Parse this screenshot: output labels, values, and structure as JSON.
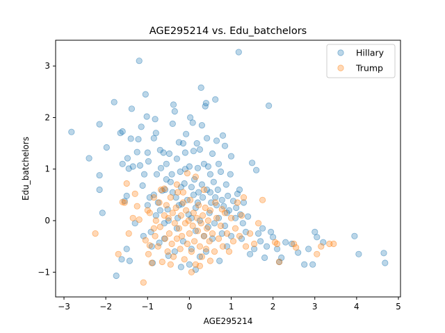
{
  "chart_data": {
    "type": "scatter",
    "title": "AGE295214 vs. Edu_batchelors",
    "xlabel": "AGE295214",
    "ylabel": "Edu_batchelors",
    "xlim": [
      -3.2,
      5.05
    ],
    "ylim": [
      -1.48,
      3.5
    ],
    "xticks": [
      -3,
      -2,
      -1,
      0,
      1,
      2,
      3,
      4,
      5
    ],
    "yticks": [
      -1,
      0,
      1,
      2,
      3
    ],
    "grid": false,
    "legend_position": "top-right",
    "point_alpha": 0.3,
    "series": [
      {
        "name": "Hillary",
        "color": "#1f77b4",
        "points": [
          [
            -2.82,
            1.72
          ],
          [
            -2.4,
            1.21
          ],
          [
            -2.15,
            1.87
          ],
          [
            -2.15,
            0.88
          ],
          [
            -2.15,
            0.6
          ],
          [
            -2.08,
            0.15
          ],
          [
            -1.98,
            1.42
          ],
          [
            -1.8,
            2.3
          ],
          [
            -1.75,
            -1.07
          ],
          [
            -1.65,
            1.7
          ],
          [
            -1.6,
            1.73
          ],
          [
            -1.55,
            0.38
          ],
          [
            -1.62,
            -0.75
          ],
          [
            -1.6,
            1.1
          ],
          [
            -1.5,
            0.48
          ],
          [
            -1.5,
            -0.55
          ],
          [
            -1.48,
            1.21
          ],
          [
            -1.45,
            1.01
          ],
          [
            -1.43,
            -0.78
          ],
          [
            -1.4,
            1.59
          ],
          [
            -1.38,
            2.17
          ],
          [
            -1.35,
            1.05
          ],
          [
            -1.3,
            -0.05
          ],
          [
            -1.25,
            1.33
          ],
          [
            -1.22,
            1.58
          ],
          [
            -1.2,
            3.1
          ],
          [
            -1.18,
            1.07
          ],
          [
            -1.15,
            1.82
          ],
          [
            -1.12,
            0.68
          ],
          [
            -1.1,
            -0.3
          ],
          [
            -1.08,
            0.9
          ],
          [
            -1.05,
            2.45
          ],
          [
            -1.02,
            2.02
          ],
          [
            -1.0,
            1.32
          ],
          [
            -0.98,
            1.15
          ],
          [
            -0.95,
            0.45
          ],
          [
            -0.92,
            -0.22
          ],
          [
            -0.9,
            -0.5
          ],
          [
            -0.88,
            -0.82
          ],
          [
            -0.85,
            1.6
          ],
          [
            -0.82,
            1.97
          ],
          [
            -0.8,
            1.7
          ],
          [
            -0.78,
            0.9
          ],
          [
            -0.75,
            0.35
          ],
          [
            -0.72,
            -0.43
          ],
          [
            -0.7,
            1.37
          ],
          [
            -0.68,
            1.02
          ],
          [
            -0.65,
            0.58
          ],
          [
            -0.62,
            1.32
          ],
          [
            -0.6,
            -0.05
          ],
          [
            -0.58,
            0.6
          ],
          [
            -0.55,
            1.1
          ],
          [
            -0.52,
            0.22
          ],
          [
            -0.5,
            -0.68
          ],
          [
            -0.48,
            1.3
          ],
          [
            -0.45,
            0.75
          ],
          [
            -0.42,
            0.9
          ],
          [
            -0.4,
            1.88
          ],
          [
            -0.38,
            2.25
          ],
          [
            -0.35,
            2.12
          ],
          [
            -0.32,
            0.45
          ],
          [
            -0.3,
            1.2
          ],
          [
            -0.28,
            0.05
          ],
          [
            -0.25,
            1.52
          ],
          [
            -0.22,
            0.95
          ],
          [
            -0.2,
            -0.9
          ],
          [
            -0.18,
            0.32
          ],
          [
            -0.15,
            1.5
          ],
          [
            -0.12,
            0.72
          ],
          [
            -0.1,
            1.32
          ],
          [
            -0.08,
            1.68
          ],
          [
            -0.05,
            0.4
          ],
          [
            -0.02,
            0.12
          ],
          [
            0.0,
            1.05
          ],
          [
            0.02,
            2.0
          ],
          [
            0.05,
            0.65
          ],
          [
            0.08,
            1.9
          ],
          [
            0.1,
            1.35
          ],
          [
            0.12,
            0.8
          ],
          [
            0.15,
            0.25
          ],
          [
            0.18,
            1.5
          ],
          [
            0.2,
            1.02
          ],
          [
            0.22,
            0.55
          ],
          [
            0.25,
            1.38
          ],
          [
            0.28,
            2.58
          ],
          [
            0.3,
            1.85
          ],
          [
            0.32,
            0.45
          ],
          [
            0.35,
            1.1
          ],
          [
            0.38,
            2.22
          ],
          [
            0.4,
            2.28
          ],
          [
            0.42,
            0.6
          ],
          [
            0.45,
            1.05
          ],
          [
            0.48,
            0.15
          ],
          [
            0.5,
            0.9
          ],
          [
            0.52,
            0.35
          ],
          [
            0.55,
            1.3
          ],
          [
            0.58,
            0.75
          ],
          [
            0.6,
            -0.05
          ],
          [
            0.62,
            2.35
          ],
          [
            0.65,
            1.55
          ],
          [
            0.68,
            0.6
          ],
          [
            0.7,
            1.1
          ],
          [
            0.72,
            -0.78
          ],
          [
            0.75,
            0.95
          ],
          [
            0.78,
            0.4
          ],
          [
            0.8,
            1.65
          ],
          [
            0.82,
            0.28
          ],
          [
            0.85,
            1.45
          ],
          [
            0.88,
            0.7
          ],
          [
            0.9,
            -0.5
          ],
          [
            0.92,
            0.48
          ],
          [
            0.95,
            0.2
          ],
          [
            0.98,
            0.9
          ],
          [
            1.0,
            1.25
          ],
          [
            1.05,
            0.38
          ],
          [
            1.1,
            0.05
          ],
          [
            1.15,
            0.52
          ],
          [
            1.18,
            3.27
          ],
          [
            1.2,
            0.6
          ],
          [
            1.25,
            -0.35
          ],
          [
            1.3,
            0.35
          ],
          [
            1.35,
            -0.22
          ],
          [
            1.4,
            0.08
          ],
          [
            1.45,
            -0.65
          ],
          [
            1.5,
            1.12
          ],
          [
            1.55,
            -0.55
          ],
          [
            1.6,
            0.98
          ],
          [
            1.65,
            -0.25
          ],
          [
            1.7,
            -0.4
          ],
          [
            1.75,
            -0.15
          ],
          [
            1.8,
            -0.72
          ],
          [
            1.85,
            -0.5
          ],
          [
            1.9,
            2.23
          ],
          [
            1.95,
            -0.22
          ],
          [
            2.0,
            -0.32
          ],
          [
            2.1,
            -0.55
          ],
          [
            2.15,
            -0.8
          ],
          [
            2.2,
            -0.72
          ],
          [
            2.3,
            -0.42
          ],
          [
            2.45,
            -0.45
          ],
          [
            2.6,
            -0.62
          ],
          [
            2.75,
            -0.85
          ],
          [
            2.85,
            -0.55
          ],
          [
            2.95,
            -0.85
          ],
          [
            3.0,
            -0.22
          ],
          [
            3.05,
            -0.32
          ],
          [
            3.2,
            -0.42
          ],
          [
            3.95,
            -0.3
          ],
          [
            4.05,
            -0.65
          ],
          [
            4.65,
            -0.63
          ],
          [
            4.68,
            -0.82
          ],
          [
            -0.5,
            0.0
          ],
          [
            -0.3,
            -0.15
          ],
          [
            0.05,
            0.05
          ],
          [
            0.15,
            -0.2
          ],
          [
            0.25,
            0.0
          ],
          [
            0.35,
            -0.3
          ],
          [
            0.45,
            -0.12
          ],
          [
            0.55,
            -0.35
          ],
          [
            0.7,
            0.05
          ],
          [
            0.85,
            -0.1
          ],
          [
            1.0,
            -0.3
          ],
          [
            -0.7,
            0.2
          ],
          [
            -0.4,
            0.55
          ],
          [
            -0.2,
            0.65
          ],
          [
            0.1,
            0.5
          ],
          [
            0.3,
            0.7
          ],
          [
            0.5,
            0.55
          ],
          [
            0.65,
            0.3
          ],
          [
            -0.15,
            -0.4
          ],
          [
            0.05,
            -0.55
          ],
          [
            0.25,
            -0.7
          ],
          [
            0.4,
            -0.6
          ],
          [
            -0.6,
            -0.35
          ],
          [
            -0.8,
            0.1
          ],
          [
            -1.0,
            0.3
          ],
          [
            0.9,
            0.15
          ],
          [
            1.12,
            0.25
          ],
          [
            1.28,
            -0.05
          ],
          [
            -0.55,
            0.8
          ],
          [
            -0.25,
            0.3
          ],
          [
            0.2,
            0.35
          ],
          [
            0.62,
            0.45
          ],
          [
            0.78,
            -0.25
          ],
          [
            -0.35,
            -0.6
          ],
          [
            0.0,
            -0.85
          ],
          [
            0.15,
            -0.95
          ],
          [
            -0.1,
            1.0
          ],
          [
            -0.85,
            0.5
          ],
          [
            1.22,
            0.12
          ],
          [
            0.42,
            1.6
          ]
        ]
      },
      {
        "name": "Trump",
        "color": "#ff7f0e",
        "points": [
          [
            -2.25,
            -0.25
          ],
          [
            -1.7,
            -0.65
          ],
          [
            -1.6,
            0.36
          ],
          [
            -1.55,
            0.35
          ],
          [
            -1.5,
            0.72
          ],
          [
            -1.45,
            -0.25
          ],
          [
            -1.3,
            0.52
          ],
          [
            -1.25,
            0.28
          ],
          [
            -1.2,
            0.02
          ],
          [
            -1.1,
            -1.2
          ],
          [
            -1.05,
            -0.38
          ],
          [
            -1.0,
            0.2
          ],
          [
            -0.98,
            -0.65
          ],
          [
            -0.95,
            0.15
          ],
          [
            -0.9,
            -0.82
          ],
          [
            -0.85,
            0.45
          ],
          [
            -0.82,
            -0.3
          ],
          [
            -0.8,
            0.0
          ],
          [
            -0.75,
            -0.5
          ],
          [
            -0.72,
            0.35
          ],
          [
            -0.7,
            -0.12
          ],
          [
            -0.68,
            0.6
          ],
          [
            -0.65,
            -0.8
          ],
          [
            -0.6,
            0.1
          ],
          [
            -0.58,
            -0.35
          ],
          [
            -0.55,
            0.3
          ],
          [
            -0.52,
            -0.6
          ],
          [
            -0.5,
            0.05
          ],
          [
            -0.48,
            -0.25
          ],
          [
            -0.45,
            0.45
          ],
          [
            -0.42,
            -0.45
          ],
          [
            -0.4,
            0.15
          ],
          [
            -0.38,
            -0.7
          ],
          [
            -0.35,
            -0.05
          ],
          [
            -0.32,
            0.25
          ],
          [
            -0.3,
            -0.35
          ],
          [
            -0.28,
            0.55
          ],
          [
            -0.25,
            -0.15
          ],
          [
            -0.22,
            -0.55
          ],
          [
            -0.2,
            0.1
          ],
          [
            -0.18,
            -0.3
          ],
          [
            -0.15,
            0.35
          ],
          [
            -0.12,
            -0.75
          ],
          [
            -0.1,
            -0.05
          ],
          [
            -0.08,
            0.2
          ],
          [
            -0.05,
            -0.45
          ],
          [
            -0.02,
            0.0
          ],
          [
            0.0,
            -0.25
          ],
          [
            0.02,
            0.4
          ],
          [
            0.05,
            -0.6
          ],
          [
            0.08,
            -0.1
          ],
          [
            0.1,
            0.15
          ],
          [
            0.12,
            -0.4
          ],
          [
            0.15,
            -0.85
          ],
          [
            0.18,
            0.05
          ],
          [
            0.2,
            -0.2
          ],
          [
            0.22,
            0.3
          ],
          [
            0.25,
            -0.5
          ],
          [
            0.28,
            -0.05
          ],
          [
            0.3,
            -0.7
          ],
          [
            0.32,
            0.1
          ],
          [
            0.35,
            -0.3
          ],
          [
            0.38,
            0.25
          ],
          [
            0.4,
            -0.55
          ],
          [
            0.42,
            -0.15
          ],
          [
            0.45,
            0.0
          ],
          [
            0.48,
            -0.4
          ],
          [
            0.5,
            0.2
          ],
          [
            0.55,
            -0.25
          ],
          [
            0.6,
            -0.6
          ],
          [
            0.65,
            0.05
          ],
          [
            0.7,
            -0.35
          ],
          [
            0.75,
            -0.1
          ],
          [
            0.8,
            -0.5
          ],
          [
            0.85,
            0.15
          ],
          [
            0.9,
            -0.25
          ],
          [
            0.95,
            -0.6
          ],
          [
            1.0,
            0.05
          ],
          [
            1.05,
            -0.4
          ],
          [
            1.1,
            -0.15
          ],
          [
            1.15,
            0.35
          ],
          [
            1.2,
            -0.3
          ],
          [
            1.3,
            0.45
          ],
          [
            1.35,
            -0.5
          ],
          [
            1.45,
            -0.25
          ],
          [
            1.55,
            -0.45
          ],
          [
            1.65,
            -0.05
          ],
          [
            1.75,
            0.4
          ],
          [
            2.05,
            -0.42
          ],
          [
            2.1,
            -0.45
          ],
          [
            2.15,
            -0.8
          ],
          [
            2.5,
            -0.45
          ],
          [
            2.55,
            -0.52
          ],
          [
            3.05,
            -0.65
          ],
          [
            3.15,
            -0.5
          ],
          [
            3.35,
            -0.45
          ],
          [
            3.45,
            -0.45
          ],
          [
            -0.6,
            0.62
          ],
          [
            -0.3,
            0.7
          ],
          [
            -0.05,
            0.92
          ],
          [
            0.15,
            0.85
          ],
          [
            0.35,
            0.6
          ],
          [
            -0.85,
            -0.15
          ],
          [
            -0.45,
            -0.85
          ],
          [
            0.05,
            -1.0
          ],
          [
            0.25,
            -0.88
          ],
          [
            0.5,
            -0.78
          ],
          [
            -0.15,
            0.55
          ],
          [
            0.62,
            0.35
          ],
          [
            0.78,
            0.22
          ],
          [
            -1.35,
            0.05
          ],
          [
            -0.95,
            -0.48
          ],
          [
            1.25,
            0.1
          ]
        ]
      }
    ]
  }
}
